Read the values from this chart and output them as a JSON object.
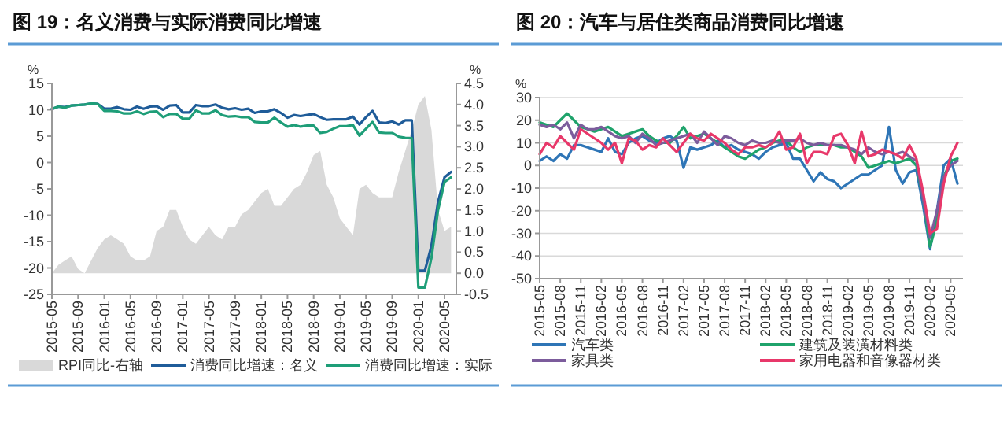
{
  "chart_data": [
    {
      "type": "line",
      "title": "图 19：名义消费与实际消费同比增速",
      "ylabel": "%",
      "y2label": "%",
      "ylim": [
        -25,
        15
      ],
      "yticks": [
        -25,
        -20,
        -15,
        -10,
        -5,
        0,
        5,
        10,
        15
      ],
      "y2lim": [
        -0.5,
        4.5
      ],
      "y2ticks": [
        -0.5,
        {
          "value": 0,
          "label": "0.0"
        },
        0.5,
        {
          "value": 1,
          "label": "1.0"
        },
        1.5,
        {
          "value": 2,
          "label": "2.0"
        },
        2.5,
        {
          "value": 3,
          "label": "3.0"
        },
        3.5,
        {
          "value": 4,
          "label": "4.0"
        },
        4.5
      ],
      "grid": false,
      "legend": "bottom",
      "categories": [
        "2015-05",
        null,
        null,
        null,
        "2015-09",
        null,
        null,
        null,
        "2016-01",
        null,
        null,
        null,
        "2016-05",
        null,
        null,
        null,
        "2016-09",
        null,
        null,
        null,
        "2017-01",
        null,
        null,
        null,
        "2017-05",
        null,
        null,
        null,
        "2017-09",
        null,
        null,
        null,
        "2018-01",
        null,
        null,
        null,
        "2018-05",
        null,
        null,
        null,
        "2018-09",
        null,
        null,
        null,
        "2019-01",
        null,
        null,
        null,
        "2019-05",
        null,
        null,
        null,
        "2019-09",
        null,
        null,
        null,
        "2020-01",
        null,
        null,
        null,
        "2020-05",
        null
      ],
      "series": [
        {
          "name": "RPI同比-右轴",
          "type": "area",
          "axis": "y2",
          "color": "#d9d9d9",
          "values": [
            0.0,
            0.2,
            0.3,
            0.4,
            0.1,
            0.0,
            0.3,
            0.6,
            0.8,
            0.9,
            0.8,
            0.7,
            0.4,
            0.3,
            0.3,
            0.4,
            1.0,
            1.1,
            1.5,
            1.5,
            1.1,
            0.8,
            0.7,
            0.9,
            1.1,
            0.9,
            0.8,
            1.1,
            1.1,
            1.4,
            1.5,
            1.7,
            1.9,
            2.0,
            1.6,
            1.6,
            1.8,
            2.0,
            2.1,
            2.4,
            2.8,
            2.9,
            2.1,
            1.8,
            1.3,
            1.1,
            0.9,
            2.0,
            2.1,
            1.9,
            1.8,
            1.8,
            1.8,
            2.4,
            2.9,
            3.4,
            4.0,
            4.2,
            3.4,
            1.5,
            1.0,
            1.1
          ]
        },
        {
          "name": "消费同比增速：名义",
          "type": "line",
          "color": "#1f5c99",
          "values": [
            10.1,
            10.6,
            10.5,
            10.8,
            10.9,
            11.0,
            11.2,
            11.1,
            10.2,
            10.2,
            10.5,
            10.1,
            10.0,
            10.6,
            10.2,
            10.6,
            10.7,
            10.0,
            10.8,
            10.9,
            9.5,
            9.5,
            10.9,
            10.7,
            10.7,
            11.0,
            10.4,
            10.1,
            10.3,
            10.0,
            10.2,
            9.4,
            9.7,
            9.7,
            10.1,
            9.4,
            8.5,
            9.0,
            8.8,
            9.0,
            9.2,
            8.6,
            8.1,
            8.2,
            8.2,
            8.2,
            8.7,
            7.2,
            8.6,
            9.8,
            7.6,
            7.5,
            7.8,
            7.2,
            8.0,
            8.0,
            -20.5,
            -20.5,
            -15.8,
            -7.5,
            -2.8,
            -1.8
          ]
        },
        {
          "name": "消费同比增速：实际",
          "type": "line",
          "color": "#1e9e78",
          "values": [
            10.2,
            10.6,
            10.4,
            10.8,
            10.9,
            11.0,
            11.2,
            11.1,
            9.8,
            9.8,
            9.7,
            9.3,
            9.3,
            9.7,
            9.2,
            9.6,
            9.7,
            8.6,
            9.2,
            9.2,
            8.3,
            8.3,
            9.9,
            9.3,
            9.3,
            9.9,
            9.0,
            8.7,
            8.8,
            8.6,
            8.6,
            7.7,
            7.6,
            7.6,
            8.5,
            7.6,
            6.8,
            7.1,
            6.8,
            7.0,
            7.0,
            5.6,
            5.8,
            6.4,
            6.9,
            6.9,
            7.1,
            5.1,
            6.4,
            7.7,
            5.7,
            5.6,
            5.6,
            4.9,
            4.7,
            4.6,
            -23.7,
            -23.7,
            -18.1,
            -9.1,
            -3.7,
            -2.8
          ]
        }
      ]
    },
    {
      "type": "line",
      "title": "图 20：汽车与居住类商品消费同比增速",
      "ylabel": "%",
      "ylim": [
        -50,
        30
      ],
      "yticks": [
        -50,
        -40,
        -30,
        -20,
        -10,
        0,
        10,
        20,
        30
      ],
      "grid": "y",
      "legend": "bottom",
      "categories": [
        "2015-05",
        null,
        null,
        "2015-08",
        null,
        null,
        "2015-11",
        null,
        null,
        "2016-02",
        null,
        null,
        "2016-05",
        null,
        null,
        "2016-08",
        null,
        null,
        "2016-11",
        null,
        null,
        "2017-02",
        null,
        null,
        "2017-05",
        null,
        null,
        "2017-08",
        null,
        null,
        "2017-11",
        null,
        null,
        "2018-02",
        null,
        null,
        "2018-05",
        null,
        null,
        "2018-08",
        null,
        null,
        "2018-11",
        null,
        null,
        "2019-02",
        null,
        null,
        "2019-05",
        null,
        null,
        "2019-08",
        null,
        null,
        "2019-11",
        null,
        null,
        "2020-02",
        null,
        null,
        "2020-05",
        null
      ],
      "series": [
        {
          "name": "汽车类",
          "color": "#2e75b6",
          "values": [
            2,
            4,
            2,
            5,
            3,
            9,
            9,
            8,
            7,
            6,
            12,
            6,
            5,
            10,
            12,
            13,
            11,
            10,
            12,
            13,
            11,
            -1,
            8,
            7,
            8,
            9,
            11,
            8,
            9,
            7,
            6,
            5,
            3,
            6,
            8,
            9,
            10,
            3,
            3,
            -2,
            -7,
            -3,
            -6,
            -7,
            -10,
            -8,
            -6,
            -4,
            -4,
            -2,
            0,
            17,
            -2,
            -8,
            -3,
            -2,
            -18,
            -37,
            -20,
            0,
            3,
            -8
          ]
        },
        {
          "name": "建筑及装潢材料类",
          "color": "#1fa36b",
          "values": [
            19,
            18,
            17,
            20,
            23,
            20,
            17,
            16,
            15,
            16,
            17,
            15,
            13,
            14,
            15,
            16,
            13,
            11,
            10,
            10,
            13,
            17,
            12,
            13,
            14,
            12,
            10,
            8,
            6,
            4,
            3,
            5,
            7,
            8,
            10,
            11,
            11,
            8,
            6,
            8,
            9,
            9,
            9,
            9,
            8,
            8,
            6,
            4,
            -1,
            0,
            1,
            2,
            1,
            2,
            3,
            0,
            -15,
            -36,
            -25,
            -5,
            2,
            3
          ]
        },
        {
          "name": "家具类",
          "color": "#7c5c9c",
          "values": [
            18,
            17,
            18,
            16,
            19,
            12,
            18,
            16,
            16,
            17,
            15,
            13,
            12,
            13,
            10,
            14,
            12,
            9,
            10,
            11,
            12,
            13,
            14,
            10,
            15,
            12,
            9,
            13,
            12,
            10,
            9,
            11,
            10,
            10,
            11,
            10,
            11,
            11,
            12,
            10,
            9,
            10,
            9,
            9,
            9,
            8,
            7,
            5,
            8,
            6,
            5,
            6,
            5,
            6,
            4,
            2,
            -15,
            -32,
            -20,
            -5,
            0,
            2
          ]
        },
        {
          "name": "家用电器和音像器材类",
          "color": "#e8386a",
          "values": [
            5,
            10,
            8,
            13,
            10,
            7,
            16,
            14,
            12,
            10,
            7,
            10,
            1,
            12,
            11,
            7,
            9,
            8,
            12,
            9,
            6,
            10,
            14,
            12,
            11,
            14,
            12,
            10,
            7,
            5,
            8,
            8,
            9,
            8,
            10,
            15,
            7,
            8,
            14,
            1,
            6,
            6,
            5,
            13,
            14,
            9,
            1,
            15,
            4,
            5,
            7,
            6,
            5,
            3,
            9,
            3,
            -12,
            -30,
            -28,
            -8,
            4,
            10
          ]
        }
      ]
    }
  ]
}
